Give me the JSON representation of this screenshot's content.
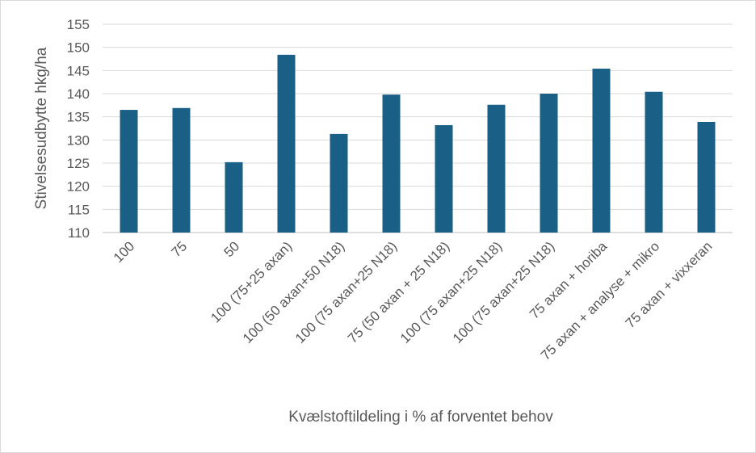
{
  "chart_data": {
    "type": "bar",
    "title": "",
    "xlabel": "Kvælstoftildeling i % af forventet behov",
    "ylabel": "Stivelsesudbytte hkg/ha",
    "ylim": [
      110,
      155
    ],
    "yticks": [
      110,
      115,
      120,
      125,
      130,
      135,
      140,
      145,
      150,
      155
    ],
    "ytick_labels": [
      "110",
      "115",
      "120",
      "125",
      "130",
      "135",
      "140",
      "145",
      "150",
      "155"
    ],
    "grid": true,
    "legend": "none",
    "bar_color": "#1a5f85",
    "categories": [
      "100",
      "75",
      "50",
      "100 (75+25 axan)",
      "100 (50 axan+50 N18)",
      "100 (75 axan+25 N18)",
      "75 (50 axan + 25 N18)",
      "100 (75 axan+25 N18)",
      "100 (75 axan+25 N18)",
      "75 axan + horiba",
      "75 axan + analyse + mikro",
      "75 axan + vixxeran"
    ],
    "values": [
      136.5,
      136.9,
      125.2,
      148.4,
      131.3,
      139.8,
      133.2,
      137.6,
      140.0,
      145.4,
      140.4,
      133.9
    ]
  }
}
